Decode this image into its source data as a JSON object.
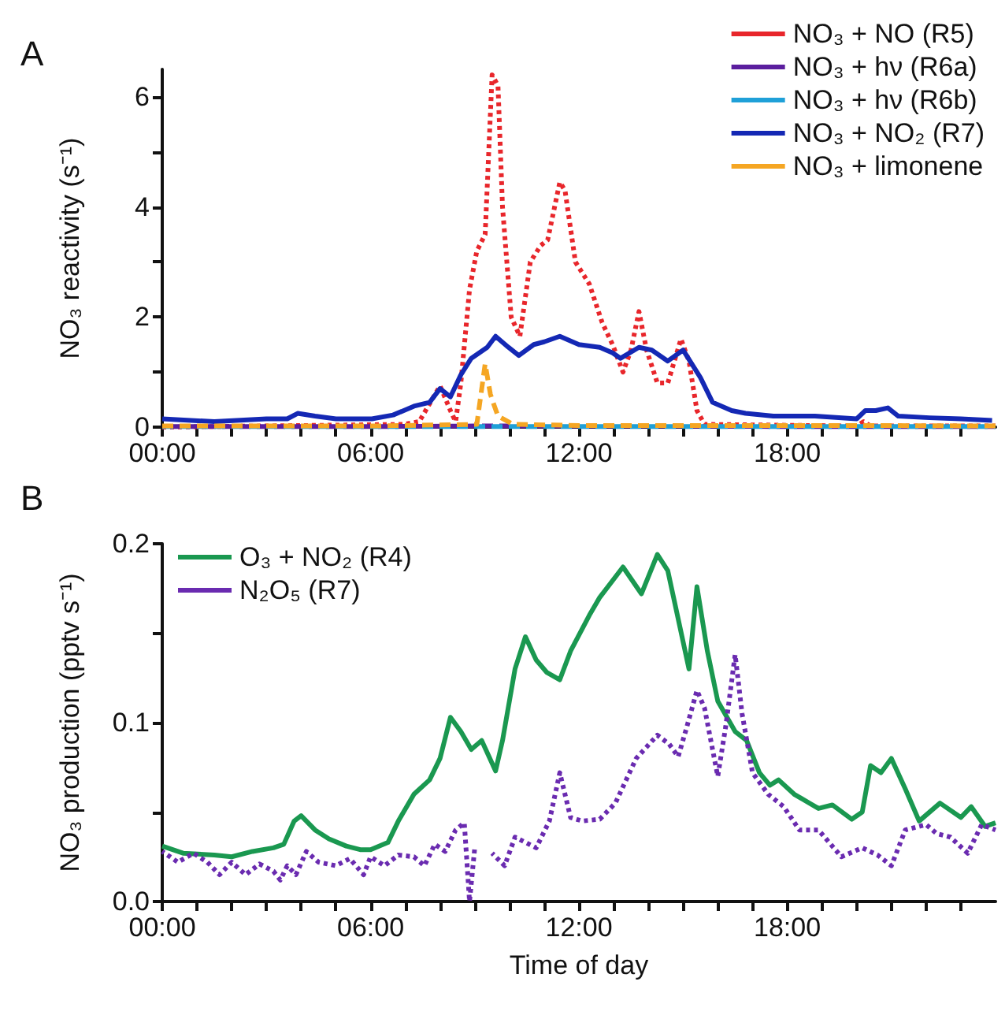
{
  "chart_data": [
    {
      "type": "line",
      "title": "A",
      "ylabel": "NO₃ reactivity (s⁻¹)",
      "xlim": [
        0,
        24
      ],
      "ylim": [
        0,
        6.5
      ],
      "xticks": [
        {
          "value": 0,
          "label": "00:00"
        },
        {
          "value": 1,
          "label": null
        },
        {
          "value": 2,
          "label": null
        },
        {
          "value": 3,
          "label": null
        },
        {
          "value": 4,
          "label": null
        },
        {
          "value": 5,
          "label": null
        },
        {
          "value": 6,
          "label": "06:00"
        },
        {
          "value": 7,
          "label": null
        },
        {
          "value": 8,
          "label": null
        },
        {
          "value": 9,
          "label": null
        },
        {
          "value": 10,
          "label": null
        },
        {
          "value": 11,
          "label": null
        },
        {
          "value": 12,
          "label": "12:00"
        },
        {
          "value": 13,
          "label": null
        },
        {
          "value": 14,
          "label": null
        },
        {
          "value": 15,
          "label": null
        },
        {
          "value": 16,
          "label": null
        },
        {
          "value": 17,
          "label": null
        },
        {
          "value": 18,
          "label": "18:00"
        },
        {
          "value": 19,
          "label": null
        },
        {
          "value": 20,
          "label": null
        },
        {
          "value": 21,
          "label": null
        },
        {
          "value": 22,
          "label": null
        },
        {
          "value": 23,
          "label": null
        }
      ],
      "yticks": [
        0,
        {
          "value": 1,
          "label": null
        },
        2,
        {
          "value": 3,
          "label": null
        },
        4,
        {
          "value": 5,
          "label": null
        },
        6
      ],
      "legend": "top right",
      "marker": "none",
      "grid": false,
      "series": [
        {
          "name": "NO₃ + NO (R5)",
          "color": "#e8262b",
          "line_style": "dotted",
          "x": [
            0,
            6.95,
            7.4,
            8.0,
            8.3,
            8.45,
            8.6,
            8.85,
            9.06,
            9.3,
            9.5,
            9.67,
            9.8,
            10.05,
            10.3,
            10.6,
            10.9,
            11.1,
            11.45,
            11.6,
            11.9,
            12.3,
            12.67,
            12.97,
            13.27,
            13.5,
            13.73,
            13.95,
            14.26,
            14.56,
            14.94,
            15.17,
            15.4,
            15.62,
            20.0,
            20.2,
            20.4,
            24
          ],
          "values": [
            0,
            0.05,
            0.1,
            0.75,
            0.3,
            0.1,
            0.8,
            2.5,
            3.2,
            3.5,
            6.4,
            6.2,
            4.0,
            2.0,
            1.65,
            3.0,
            3.3,
            3.4,
            4.45,
            4.3,
            3.0,
            2.6,
            1.9,
            1.5,
            1.0,
            1.4,
            2.1,
            1.4,
            0.8,
            0.8,
            1.6,
            1.2,
            0.3,
            0.05,
            0.02,
            0.1,
            0.02,
            0.02
          ]
        },
        {
          "name": "NO₃ + hν (R6a)",
          "color": "#5b1e9e",
          "line_style": "dashed",
          "x": [
            0,
            6,
            9,
            12,
            15,
            18,
            24
          ],
          "values": [
            0.01,
            0.01,
            0.02,
            0.02,
            0.02,
            0.01,
            0.01
          ]
        },
        {
          "name": "NO₃ + hν (R6b)",
          "color": "#1fa0d8",
          "line_style": "dashed",
          "x": [
            0,
            6,
            9,
            12,
            15,
            18,
            24
          ],
          "values": [
            0.01,
            0.01,
            0.01,
            0.01,
            0.01,
            0.01,
            0.01
          ]
        },
        {
          "name": "NO₃ + NO₂ (R7)",
          "color": "#1428b4",
          "line_style": "solid",
          "x": [
            0,
            1.5,
            3.0,
            3.6,
            3.9,
            4.4,
            5.0,
            6.04,
            6.65,
            7.25,
            7.7,
            8.0,
            8.3,
            8.6,
            8.9,
            9.36,
            9.6,
            9.97,
            10.27,
            10.7,
            11.0,
            11.45,
            12.0,
            12.6,
            12.97,
            13.2,
            13.73,
            14.1,
            14.56,
            15.0,
            15.5,
            15.85,
            16.4,
            16.8,
            17.6,
            18.8,
            20.0,
            20.25,
            20.55,
            20.9,
            21.2,
            22.1,
            23.0,
            23.9
          ],
          "values": [
            0.15,
            0.1,
            0.15,
            0.15,
            0.25,
            0.2,
            0.15,
            0.15,
            0.22,
            0.38,
            0.45,
            0.7,
            0.55,
            0.95,
            1.25,
            1.45,
            1.65,
            1.45,
            1.3,
            1.5,
            1.55,
            1.65,
            1.5,
            1.45,
            1.35,
            1.25,
            1.45,
            1.4,
            1.2,
            1.4,
            0.9,
            0.45,
            0.3,
            0.25,
            0.2,
            0.2,
            0.15,
            0.3,
            0.3,
            0.35,
            0.2,
            0.17,
            0.15,
            0.12
          ]
        },
        {
          "name": "NO₃ + limonene",
          "color": "#f5a623",
          "line_style": "dashed",
          "x": [
            0,
            6,
            9.06,
            9.3,
            9.45,
            9.5,
            9.67,
            10.1,
            12,
            16,
            20,
            24
          ],
          "values": [
            0.02,
            0.02,
            0.05,
            1.15,
            0.6,
            0.5,
            0.2,
            0.05,
            0.03,
            0.03,
            0.03,
            0.02
          ]
        }
      ]
    },
    {
      "type": "line",
      "title": "B",
      "xlabel": "Time of day",
      "ylabel": "NO₃ production (pptv s⁻¹)",
      "xlim": [
        0,
        24
      ],
      "ylim": [
        0,
        0.2
      ],
      "xticks": [
        {
          "value": 0,
          "label": "00:00"
        },
        {
          "value": 1,
          "label": null
        },
        {
          "value": 2,
          "label": null
        },
        {
          "value": 3,
          "label": null
        },
        {
          "value": 4,
          "label": null
        },
        {
          "value": 5,
          "label": null
        },
        {
          "value": 6,
          "label": "06:00"
        },
        {
          "value": 7,
          "label": null
        },
        {
          "value": 8,
          "label": null
        },
        {
          "value": 9,
          "label": null
        },
        {
          "value": 10,
          "label": null
        },
        {
          "value": 11,
          "label": null
        },
        {
          "value": 12,
          "label": "12:00"
        },
        {
          "value": 13,
          "label": null
        },
        {
          "value": 14,
          "label": null
        },
        {
          "value": 15,
          "label": null
        },
        {
          "value": 16,
          "label": null
        },
        {
          "value": 17,
          "label": null
        },
        {
          "value": 18,
          "label": "18:00"
        },
        {
          "value": 19,
          "label": null
        },
        {
          "value": 20,
          "label": null
        },
        {
          "value": 21,
          "label": null
        },
        {
          "value": 22,
          "label": null
        },
        {
          "value": 23,
          "label": null
        }
      ],
      "yticks": [
        {
          "value": 0,
          "label": "0.0"
        },
        {
          "value": 0.05,
          "label": null
        },
        0.1,
        {
          "value": 0.15,
          "label": null
        },
        0.2
      ],
      "legend": "top left",
      "marker": "none",
      "grid": false,
      "series": [
        {
          "name": "O₃ + NO₂ (R4)",
          "color": "#1a9850",
          "line_style": "solid",
          "x": [
            0,
            0.6,
            1.5,
            2.0,
            2.6,
            3.2,
            3.5,
            3.8,
            4.0,
            4.4,
            4.8,
            5.3,
            5.7,
            6.0,
            6.5,
            6.8,
            7.25,
            7.7,
            8.0,
            8.3,
            8.6,
            8.9,
            9.2,
            9.6,
            9.8,
            10.16,
            10.46,
            10.77,
            11.08,
            11.45,
            11.76,
            12.3,
            12.6,
            13.27,
            13.8,
            14.26,
            14.56,
            15.17,
            15.4,
            15.7,
            16.0,
            16.5,
            16.83,
            17.2,
            17.5,
            17.75,
            18.2,
            18.9,
            19.3,
            19.86,
            20.16,
            20.4,
            20.7,
            21.0,
            21.4,
            21.8,
            22.4,
            23.0,
            23.3,
            23.7,
            24.0
          ],
          "values": [
            0.031,
            0.027,
            0.026,
            0.025,
            0.028,
            0.03,
            0.032,
            0.045,
            0.048,
            0.04,
            0.035,
            0.031,
            0.029,
            0.029,
            0.033,
            0.045,
            0.06,
            0.068,
            0.08,
            0.103,
            0.095,
            0.085,
            0.09,
            0.073,
            0.09,
            0.13,
            0.148,
            0.135,
            0.128,
            0.124,
            0.14,
            0.16,
            0.17,
            0.187,
            0.172,
            0.194,
            0.185,
            0.13,
            0.176,
            0.14,
            0.112,
            0.095,
            0.09,
            0.072,
            0.065,
            0.068,
            0.06,
            0.052,
            0.054,
            0.046,
            0.05,
            0.076,
            0.072,
            0.08,
            0.063,
            0.045,
            0.055,
            0.047,
            0.053,
            0.042,
            0.044
          ]
        },
        {
          "name": "N₂O₅ (R7)",
          "color": "#6a2bb0",
          "line_style": "dotted",
          "x": [
            0,
            0.45,
            0.9,
            1.3,
            1.65,
            2.0,
            2.4,
            2.8,
            3.2,
            3.4,
            3.6,
            3.85,
            4.15,
            4.5,
            5.0,
            5.4,
            5.8,
            6.0,
            6.4,
            6.8,
            7.25,
            7.55,
            7.85,
            8.15,
            8.45,
            8.7,
            8.85,
            9.0,
            9.2,
            9.5,
            9.86,
            10.16,
            10.77,
            11.15,
            11.45,
            11.76,
            12.1,
            12.6,
            13.05,
            13.65,
            14.26,
            14.6,
            14.86,
            15.1,
            15.4,
            15.62,
            16.0,
            16.23,
            16.5,
            16.7,
            17.0,
            17.45,
            17.9,
            18.35,
            18.9,
            19.56,
            20.16,
            20.6,
            21.0,
            21.4,
            22.0,
            22.3,
            22.7,
            23.2,
            23.6,
            24.0
          ],
          "values": [
            0.028,
            0.022,
            0.027,
            0.022,
            0.015,
            0.022,
            0.015,
            0.021,
            0.017,
            0.012,
            0.02,
            0.015,
            0.028,
            0.022,
            0.02,
            0.024,
            0.015,
            0.025,
            0.02,
            0.026,
            0.025,
            0.02,
            0.032,
            0.028,
            0.04,
            0.044,
            0.0,
            0.03,
            null,
            0.027,
            0.02,
            0.036,
            0.03,
            0.045,
            0.072,
            0.047,
            0.045,
            0.046,
            0.055,
            0.08,
            0.093,
            0.088,
            0.081,
            0.097,
            0.118,
            0.108,
            0.07,
            0.098,
            0.138,
            0.105,
            0.072,
            0.06,
            0.053,
            0.04,
            0.04,
            0.025,
            0.03,
            0.026,
            0.02,
            0.04,
            0.043,
            0.038,
            0.036,
            0.027,
            0.043,
            0.04
          ]
        }
      ]
    }
  ]
}
